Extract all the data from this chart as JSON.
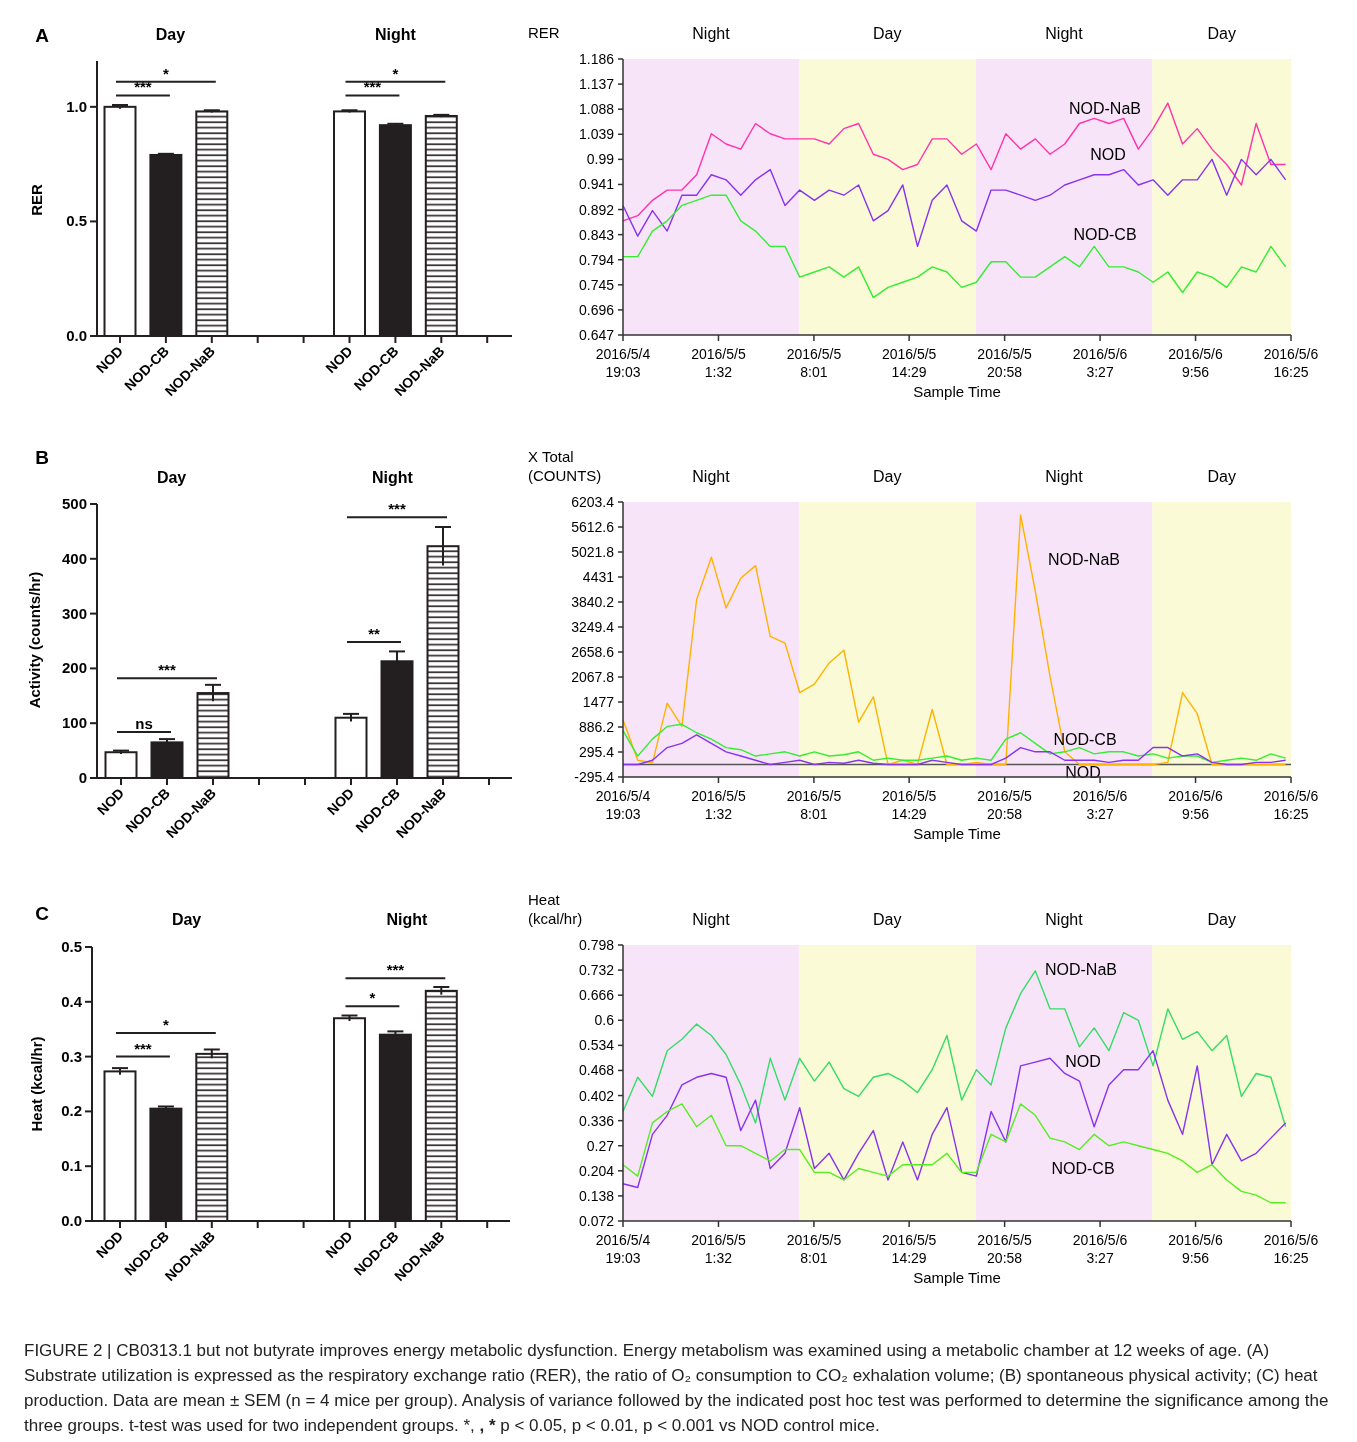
{
  "chart_data": [
    {
      "type": "bar",
      "title": "A",
      "ylabel": "RER",
      "categories": [
        "NOD",
        "NOD-CB",
        "NOD-NaB",
        null,
        null,
        "NOD",
        "NOD-CB",
        "NOD-NaB",
        null
      ],
      "values": [
        1.0,
        0.79,
        0.98,
        null,
        null,
        0.98,
        0.92,
        0.96,
        null
      ],
      "errors": [
        0.008,
        0.005,
        0.005,
        null,
        null,
        0.005,
        0.006,
        0.005,
        null
      ],
      "colors": [
        "#ffffff",
        "#231f20",
        "#231f20",
        null,
        null,
        "#ffffff",
        "#231f20",
        "#231f20",
        null
      ],
      "ylim": [
        0,
        1.2
      ],
      "yticks": [
        {
          "value": 0,
          "label": "0.0"
        },
        {
          "value": 0.5,
          "label": "0.5"
        },
        {
          "value": 1,
          "label": "1.0"
        }
      ],
      "annotations": [
        "Day",
        "Night",
        "***",
        "*",
        "***",
        "*"
      ]
    },
    {
      "type": "line",
      "ylabel": "RER",
      "xlabel": "Sample Time",
      "marker": "none",
      "line_style": "solid",
      "x": [
        "2016-05-04T19:03",
        "2016-05-04T20:03",
        "2016-05-04T21:03",
        "2016-05-04T22:03",
        "2016-05-04T23:03",
        "2016-05-05T00:03",
        "2016-05-05T01:03",
        "2016-05-05T02:03",
        "2016-05-05T03:03",
        "2016-05-05T04:03",
        "2016-05-05T05:03",
        "2016-05-05T06:03",
        "2016-05-05T07:03",
        "2016-05-05T08:03",
        "2016-05-05T09:03",
        "2016-05-05T10:03",
        "2016-05-05T11:03",
        "2016-05-05T12:03",
        "2016-05-05T13:03",
        "2016-05-05T14:03",
        "2016-05-05T15:03",
        "2016-05-05T16:03",
        "2016-05-05T17:03",
        "2016-05-05T18:03",
        "2016-05-05T19:03",
        "2016-05-05T20:03",
        "2016-05-05T21:03",
        "2016-05-05T22:03",
        "2016-05-05T23:03",
        "2016-05-06T00:03",
        "2016-05-06T01:03",
        "2016-05-06T02:03",
        "2016-05-06T03:03",
        "2016-05-06T04:03",
        "2016-05-06T05:03",
        "2016-05-06T06:03",
        "2016-05-06T07:03",
        "2016-05-06T08:03",
        "2016-05-06T09:03",
        "2016-05-06T10:03",
        "2016-05-06T11:03",
        "2016-05-06T12:03",
        "2016-05-06T13:03",
        "2016-05-06T14:03",
        "2016-05-06T15:03",
        "2016-05-06T16:03"
      ],
      "series": [
        {
          "name": "NOD-NaB",
          "color": "#ff33aa",
          "values": [
            0.87,
            0.88,
            0.91,
            0.93,
            0.93,
            0.96,
            1.04,
            1.02,
            1.01,
            1.06,
            1.04,
            1.03,
            1.03,
            1.03,
            1.02,
            1.05,
            1.06,
            1.0,
            0.99,
            0.97,
            0.98,
            1.03,
            1.03,
            1.0,
            1.02,
            0.97,
            1.04,
            1.01,
            1.03,
            1.0,
            1.02,
            1.06,
            1.07,
            1.06,
            1.07,
            1.01,
            1.05,
            1.1,
            1.02,
            1.05,
            1.01,
            0.98,
            0.94,
            1.06,
            0.98,
            0.98
          ]
        },
        {
          "name": "NOD",
          "color": "#8833ee",
          "values": [
            0.9,
            0.84,
            0.89,
            0.85,
            0.92,
            0.92,
            0.96,
            0.95,
            0.92,
            0.95,
            0.97,
            0.9,
            0.93,
            0.91,
            0.93,
            0.92,
            0.94,
            0.87,
            0.89,
            0.94,
            0.82,
            0.91,
            0.94,
            0.87,
            0.85,
            0.93,
            0.93,
            0.92,
            0.91,
            0.92,
            0.94,
            0.95,
            0.96,
            0.96,
            0.97,
            0.94,
            0.95,
            0.92,
            0.95,
            0.95,
            0.99,
            0.92,
            0.99,
            0.96,
            0.99,
            0.95
          ]
        },
        {
          "name": "NOD-CB",
          "color": "#33ee33",
          "values": [
            0.8,
            0.8,
            0.85,
            0.87,
            0.9,
            0.91,
            0.92,
            0.92,
            0.87,
            0.85,
            0.82,
            0.82,
            0.76,
            0.77,
            0.78,
            0.76,
            0.78,
            0.72,
            0.74,
            0.75,
            0.76,
            0.78,
            0.77,
            0.74,
            0.75,
            0.79,
            0.79,
            0.76,
            0.76,
            0.78,
            0.8,
            0.78,
            0.82,
            0.78,
            0.78,
            0.77,
            0.75,
            0.77,
            0.73,
            0.77,
            0.76,
            0.74,
            0.78,
            0.77,
            0.82,
            0.78
          ]
        }
      ],
      "xlim": [
        "2016-05-04T19:03",
        "2016-05-06T16:25"
      ],
      "xticks": [
        {
          "value": "2016-05-04T19:03",
          "label": "2016/5/4 19:03"
        },
        {
          "value": "2016-05-05T01:32",
          "label": "2016/5/5 1:32"
        },
        {
          "value": "2016-05-05T08:01",
          "label": "2016/5/5 8:01"
        },
        {
          "value": "2016-05-05T14:29",
          "label": "2016/5/5 14:29"
        },
        {
          "value": "2016-05-05T20:58",
          "label": "2016/5/5 20:58"
        },
        {
          "value": "2016-05-06T03:27",
          "label": "2016/5/6 3:27"
        },
        {
          "value": "2016-05-06T09:56",
          "label": "2016/5/6 9:56"
        },
        {
          "value": "2016-05-06T16:25",
          "label": "2016/5/6 16:25"
        }
      ],
      "ylim": [
        0.647,
        1.186
      ],
      "yticks": [
        0.647,
        0.696,
        0.745,
        0.794,
        0.843,
        0.892,
        0.941,
        0.99,
        1.039,
        1.088,
        1.137,
        1.186
      ],
      "bands": [
        {
          "axis": "x",
          "from": "2016-05-04T19:03",
          "to": "2016-05-05T07:00",
          "label": "Night",
          "color": "#f8e4f8"
        },
        {
          "axis": "x",
          "from": "2016-05-05T07:00",
          "to": "2016-05-05T19:00",
          "label": "Day",
          "color": "#fafad6"
        },
        {
          "axis": "x",
          "from": "2016-05-05T19:00",
          "to": "2016-05-06T07:00",
          "label": "Night",
          "color": "#f8e4f8"
        },
        {
          "axis": "x",
          "from": "2016-05-06T07:00",
          "to": "2016-05-06T16:25",
          "label": "Day",
          "color": "#fafad6"
        }
      ]
    },
    {
      "type": "bar",
      "title": "B",
      "ylabel": "Activity (counts/hr)",
      "categories": [
        "NOD",
        "NOD-CB",
        "NOD-NaB",
        null,
        null,
        "NOD",
        "NOD-CB",
        "NOD-NaB",
        null
      ],
      "values": [
        47,
        65,
        155,
        null,
        null,
        110,
        213,
        423,
        null
      ],
      "errors": [
        3,
        6,
        15,
        null,
        null,
        7,
        18,
        35,
        null
      ],
      "colors": [
        "#ffffff",
        "#231f20",
        "#231f20",
        null,
        null,
        "#ffffff",
        "#231f20",
        "#231f20",
        null
      ],
      "ylim": [
        0,
        500
      ],
      "yticks": [
        0,
        100,
        200,
        300,
        400,
        500
      ],
      "annotations": [
        "Day",
        "Night",
        "ns",
        "***",
        "**",
        "***"
      ]
    },
    {
      "type": "line",
      "ylabel": "X Total (COUNTS)",
      "xlabel": "Sample Time",
      "marker": "none",
      "line_style": "solid",
      "x": [
        "2016-05-04T19:03",
        "2016-05-04T20:03",
        "2016-05-04T21:03",
        "2016-05-04T22:03",
        "2016-05-04T23:03",
        "2016-05-05T00:03",
        "2016-05-05T01:03",
        "2016-05-05T02:03",
        "2016-05-05T03:03",
        "2016-05-05T04:03",
        "2016-05-05T05:03",
        "2016-05-05T06:03",
        "2016-05-05T07:03",
        "2016-05-05T08:03",
        "2016-05-05T09:03",
        "2016-05-05T10:03",
        "2016-05-05T11:03",
        "2016-05-05T12:03",
        "2016-05-05T13:03",
        "2016-05-05T14:03",
        "2016-05-05T15:03",
        "2016-05-05T16:03",
        "2016-05-05T17:03",
        "2016-05-05T18:03",
        "2016-05-05T19:03",
        "2016-05-05T20:03",
        "2016-05-05T21:03",
        "2016-05-05T22:03",
        "2016-05-05T23:03",
        "2016-05-06T00:03",
        "2016-05-06T01:03",
        "2016-05-06T02:03",
        "2016-05-06T03:03",
        "2016-05-06T04:03",
        "2016-05-06T05:03",
        "2016-05-06T06:03",
        "2016-05-06T07:03",
        "2016-05-06T08:03",
        "2016-05-06T09:03",
        "2016-05-06T10:03",
        "2016-05-06T11:03",
        "2016-05-06T12:03",
        "2016-05-06T13:03",
        "2016-05-06T14:03",
        "2016-05-06T15:03",
        "2016-05-06T16:03"
      ],
      "series": [
        {
          "name": "NOD-NaB",
          "color": "#ffb300",
          "values": [
            1060,
            100,
            40,
            1450,
            900,
            3900,
            4900,
            3700,
            4400,
            4700,
            3030,
            2870,
            1700,
            1900,
            2400,
            2700,
            1000,
            1600,
            0,
            100,
            0,
            1300,
            0,
            0,
            50,
            0,
            0,
            5900,
            4100,
            2080,
            300,
            0,
            0,
            0,
            0,
            0,
            0,
            50,
            1700,
            1200,
            0,
            0,
            0,
            0,
            0,
            0
          ]
        },
        {
          "name": "NOD-CB",
          "color": "#33ee33",
          "values": [
            800,
            200,
            600,
            900,
            950,
            750,
            600,
            400,
            350,
            200,
            250,
            300,
            200,
            300,
            200,
            230,
            300,
            100,
            150,
            100,
            100,
            150,
            200,
            100,
            150,
            100,
            600,
            750,
            500,
            250,
            300,
            400,
            250,
            300,
            300,
            200,
            250,
            150,
            200,
            200,
            50,
            100,
            150,
            100,
            250,
            150
          ]
        },
        {
          "name": "NOD",
          "color": "#8833ee",
          "values": [
            0,
            0,
            100,
            400,
            500,
            700,
            500,
            300,
            200,
            100,
            0,
            50,
            100,
            0,
            50,
            30,
            100,
            30,
            0,
            0,
            0,
            100,
            50,
            0,
            0,
            0,
            150,
            400,
            300,
            300,
            100,
            100,
            100,
            50,
            100,
            100,
            400,
            400,
            200,
            250,
            50,
            0,
            0,
            50,
            50,
            100
          ]
        }
      ],
      "xlim": [
        "2016-05-04T19:03",
        "2016-05-06T16:25"
      ],
      "xticks": [
        {
          "value": "2016-05-04T19:03",
          "label": "2016/5/4 19:03"
        },
        {
          "value": "2016-05-05T01:32",
          "label": "2016/5/5 1:32"
        },
        {
          "value": "2016-05-05T08:01",
          "label": "2016/5/5 8:01"
        },
        {
          "value": "2016-05-05T14:29",
          "label": "2016/5/5 14:29"
        },
        {
          "value": "2016-05-05T20:58",
          "label": "2016/5/5 20:58"
        },
        {
          "value": "2016-05-06T03:27",
          "label": "2016/5/6 3:27"
        },
        {
          "value": "2016-05-06T09:56",
          "label": "2016/5/6 9:56"
        },
        {
          "value": "2016-05-06T16:25",
          "label": "2016/5/6 16:25"
        }
      ],
      "ylim": [
        -295.4,
        6203.4
      ],
      "yticks": [
        -295.4,
        295.4,
        886.2,
        1477,
        2067.8,
        2658.6,
        3249.4,
        3840.2,
        4431,
        5021.8,
        5612.6,
        6203.4
      ],
      "ref_lines": [
        {
          "axis": "y",
          "value": 0,
          "color": "#555555"
        }
      ],
      "bands": [
        {
          "axis": "x",
          "from": "2016-05-04T19:03",
          "to": "2016-05-05T07:00",
          "label": "Night",
          "color": "#f8e4f8"
        },
        {
          "axis": "x",
          "from": "2016-05-05T07:00",
          "to": "2016-05-05T19:00",
          "label": "Day",
          "color": "#fafad6"
        },
        {
          "axis": "x",
          "from": "2016-05-05T19:00",
          "to": "2016-05-06T07:00",
          "label": "Night",
          "color": "#f8e4f8"
        },
        {
          "axis": "x",
          "from": "2016-05-06T07:00",
          "to": "2016-05-06T16:25",
          "label": "Day",
          "color": "#fafad6"
        }
      ]
    },
    {
      "type": "bar",
      "title": "C",
      "ylabel": "Heat (kcal/hr)",
      "categories": [
        "NOD",
        "NOD-CB",
        "NOD-NaB",
        null,
        null,
        "NOD",
        "NOD-CB",
        "NOD-NaB",
        null
      ],
      "values": [
        0.273,
        0.205,
        0.305,
        null,
        null,
        0.37,
        0.34,
        0.42,
        null
      ],
      "errors": [
        0.006,
        0.004,
        0.008,
        null,
        null,
        0.005,
        0.006,
        0.007,
        null
      ],
      "colors": [
        "#ffffff",
        "#231f20",
        "#231f20",
        null,
        null,
        "#ffffff",
        "#231f20",
        "#231f20",
        null
      ],
      "ylim": [
        0,
        0.5
      ],
      "yticks": [
        {
          "value": 0,
          "label": "0.0"
        },
        0.1,
        0.2,
        0.3,
        0.4,
        0.5
      ],
      "annotations": [
        "Day",
        "Night",
        "***",
        "*",
        "*",
        "***"
      ]
    },
    {
      "type": "line",
      "ylabel": "Heat (kcal/hr)",
      "xlabel": "Sample Time",
      "marker": "none",
      "line_style": "solid",
      "x": [
        "2016-05-04T19:03",
        "2016-05-04T20:03",
        "2016-05-04T21:03",
        "2016-05-04T22:03",
        "2016-05-04T23:03",
        "2016-05-05T00:03",
        "2016-05-05T01:03",
        "2016-05-05T02:03",
        "2016-05-05T03:03",
        "2016-05-05T04:03",
        "2016-05-05T05:03",
        "2016-05-05T06:03",
        "2016-05-05T07:03",
        "2016-05-05T08:03",
        "2016-05-05T09:03",
        "2016-05-05T10:03",
        "2016-05-05T11:03",
        "2016-05-05T12:03",
        "2016-05-05T13:03",
        "2016-05-05T14:03",
        "2016-05-05T15:03",
        "2016-05-05T16:03",
        "2016-05-05T17:03",
        "2016-05-05T18:03",
        "2016-05-05T19:03",
        "2016-05-05T20:03",
        "2016-05-05T21:03",
        "2016-05-05T22:03",
        "2016-05-05T23:03",
        "2016-05-06T00:03",
        "2016-05-06T01:03",
        "2016-05-06T02:03",
        "2016-05-06T03:03",
        "2016-05-06T04:03",
        "2016-05-06T05:03",
        "2016-05-06T06:03",
        "2016-05-06T07:03",
        "2016-05-06T08:03",
        "2016-05-06T09:03",
        "2016-05-06T10:03",
        "2016-05-06T11:03",
        "2016-05-06T12:03",
        "2016-05-06T13:03",
        "2016-05-06T14:03",
        "2016-05-06T15:03",
        "2016-05-06T16:03"
      ],
      "series": [
        {
          "name": "NOD-NaB",
          "color": "#33dd66",
          "values": [
            0.36,
            0.45,
            0.4,
            0.52,
            0.55,
            0.59,
            0.56,
            0.51,
            0.43,
            0.33,
            0.5,
            0.39,
            0.5,
            0.44,
            0.49,
            0.42,
            0.4,
            0.45,
            0.46,
            0.44,
            0.41,
            0.47,
            0.56,
            0.39,
            0.47,
            0.43,
            0.58,
            0.67,
            0.73,
            0.63,
            0.63,
            0.53,
            0.58,
            0.52,
            0.62,
            0.6,
            0.48,
            0.63,
            0.55,
            0.57,
            0.52,
            0.56,
            0.4,
            0.46,
            0.45,
            0.32
          ]
        },
        {
          "name": "NOD",
          "color": "#8833ee",
          "values": [
            0.17,
            0.16,
            0.3,
            0.35,
            0.43,
            0.45,
            0.46,
            0.45,
            0.31,
            0.39,
            0.21,
            0.25,
            0.37,
            0.21,
            0.25,
            0.18,
            0.25,
            0.31,
            0.18,
            0.28,
            0.18,
            0.3,
            0.37,
            0.2,
            0.19,
            0.36,
            0.28,
            0.48,
            0.49,
            0.5,
            0.46,
            0.44,
            0.32,
            0.43,
            0.47,
            0.47,
            0.52,
            0.39,
            0.3,
            0.48,
            0.22,
            0.3,
            0.23,
            0.25,
            0.29,
            0.33
          ]
        },
        {
          "name": "NOD-CB",
          "color": "#55ee22",
          "values": [
            0.22,
            0.19,
            0.33,
            0.36,
            0.38,
            0.32,
            0.35,
            0.27,
            0.27,
            0.25,
            0.23,
            0.26,
            0.26,
            0.2,
            0.2,
            0.18,
            0.21,
            0.2,
            0.19,
            0.22,
            0.22,
            0.22,
            0.25,
            0.2,
            0.2,
            0.3,
            0.28,
            0.38,
            0.35,
            0.29,
            0.28,
            0.26,
            0.3,
            0.27,
            0.28,
            0.27,
            0.26,
            0.25,
            0.23,
            0.2,
            0.22,
            0.18,
            0.15,
            0.14,
            0.12,
            0.12
          ]
        }
      ],
      "xlim": [
        "2016-05-04T19:03",
        "2016-05-06T16:25"
      ],
      "xticks": [
        {
          "value": "2016-05-04T19:03",
          "label": "2016/5/4 19:03"
        },
        {
          "value": "2016-05-05T01:32",
          "label": "2016/5/5 1:32"
        },
        {
          "value": "2016-05-05T08:01",
          "label": "2016/5/5 8:01"
        },
        {
          "value": "2016-05-05T14:29",
          "label": "2016/5/5 14:29"
        },
        {
          "value": "2016-05-05T20:58",
          "label": "2016/5/5 20:58"
        },
        {
          "value": "2016-05-06T03:27",
          "label": "2016/5/6 3:27"
        },
        {
          "value": "2016-05-06T09:56",
          "label": "2016/5/6 9:56"
        },
        {
          "value": "2016-05-06T16:25",
          "label": "2016/5/6 16:25"
        }
      ],
      "ylim": [
        0.072,
        0.798
      ],
      "yticks": [
        0.072,
        0.138,
        0.204,
        0.27,
        0.336,
        0.402,
        0.468,
        0.534,
        0.6,
        0.666,
        0.732,
        0.798
      ],
      "bands": [
        {
          "axis": "x",
          "from": "2016-05-04T19:03",
          "to": "2016-05-05T07:00",
          "label": "Night",
          "color": "#f8e4f8"
        },
        {
          "axis": "x",
          "from": "2016-05-05T07:00",
          "to": "2016-05-05T19:00",
          "label": "Day",
          "color": "#fafad6"
        },
        {
          "axis": "x",
          "from": "2016-05-05T19:00",
          "to": "2016-05-06T07:00",
          "label": "Night",
          "color": "#f8e4f8"
        },
        {
          "axis": "x",
          "from": "2016-05-06T07:00",
          "to": "2016-05-06T16:25",
          "label": "Day",
          "color": "#fafad6"
        }
      ],
      "annotations": [
        "FIGURE 2 | CB0313.1 but not butyrate improves energy metabolic dysfunction. Energy metabolism was examined using a metabolic chamber at 12 weeks of age. (A) Substrate utilization is expressed as the respiratory exchange ratio (RER), the ratio of O₂ consumption to CO₂ exhalation volume; (B) spontaneous physical activity; (C) heat production. Data are mean ± SEM (n = 4 mice per group). Analysis of variance followed by the indicated post hoc test was performed to determine the significance among the three groups. t-test was used for two independent groups. *, **, *** p < 0.05, p < 0.01, p < 0.001 vs NOD control mice."
      ]
    }
  ]
}
